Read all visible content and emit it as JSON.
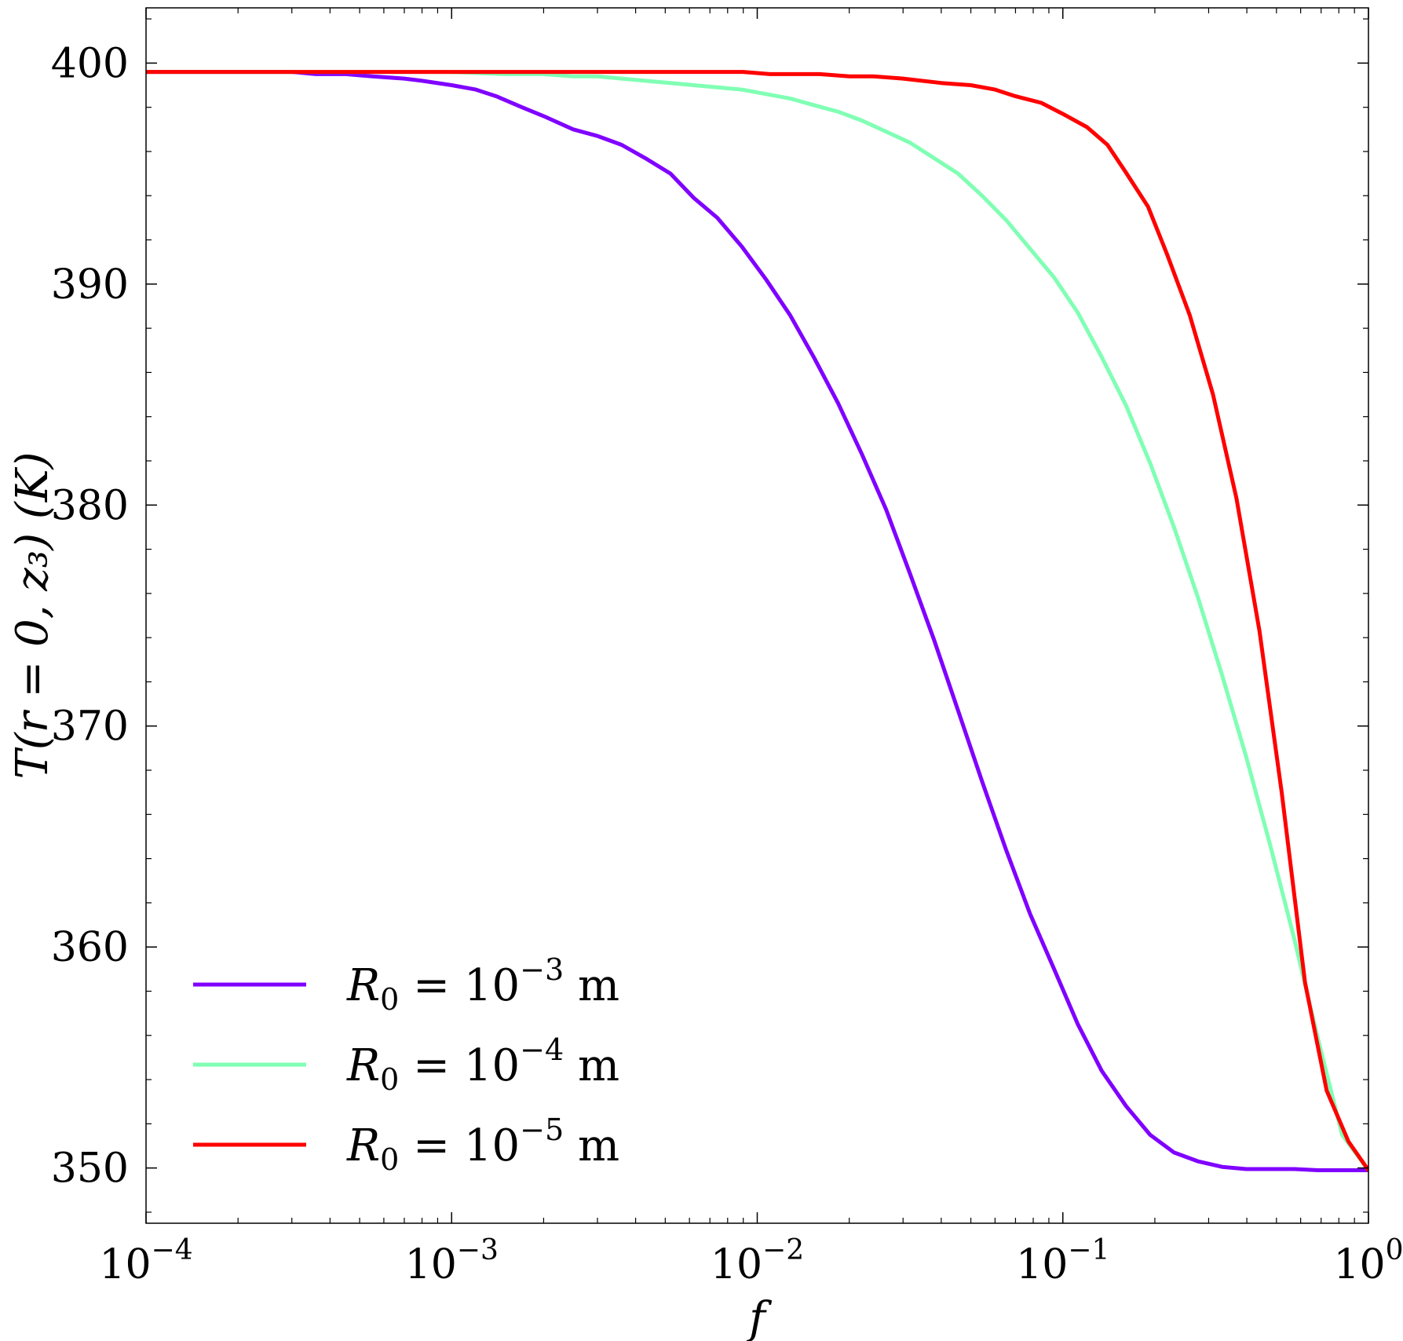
{
  "chart_data": {
    "type": "line",
    "xlabel": "f",
    "ylabel": "T(r = 0, z₃) (K)",
    "xscale": "log",
    "xlim": [
      0.0001,
      1
    ],
    "ylim": [
      347.5,
      402.5
    ],
    "grid": false,
    "legend_position": "lower-left",
    "x_ticks": [
      {
        "value": 0.0001,
        "base": "10",
        "exp": "−4"
      },
      {
        "value": 0.001,
        "base": "10",
        "exp": "−3"
      },
      {
        "value": 0.01,
        "base": "10",
        "exp": "−2"
      },
      {
        "value": 0.1,
        "base": "10",
        "exp": "−1"
      },
      {
        "value": 1,
        "base": "10",
        "exp": "0"
      }
    ],
    "y_ticks": [
      350,
      360,
      370,
      380,
      390,
      400
    ],
    "series": [
      {
        "name": "R₀ = 10⁻³ m",
        "legend": {
          "pre": "R",
          "sub": "0",
          "mid": " = 10",
          "sup": "−3",
          "post": " m"
        },
        "color": "#8000ff",
        "x": [
          0.0001,
          0.0003,
          0.00036,
          0.00045,
          0.00055,
          0.0007,
          0.0008,
          0.001,
          0.0012,
          0.0014,
          0.0017,
          0.002,
          0.0025,
          0.003,
          0.0036,
          0.0043,
          0.0052,
          0.0062,
          0.0074,
          0.0089,
          0.0107,
          0.0128,
          0.0153,
          0.0184,
          0.022,
          0.0264,
          0.0316,
          0.0379,
          0.0454,
          0.0544,
          0.0652,
          0.0781,
          0.0936,
          0.112,
          0.134,
          0.161,
          0.193,
          0.231,
          0.277,
          0.332,
          0.398,
          0.477,
          0.571,
          0.685,
          0.82,
          1.0
        ],
        "y": [
          399.6,
          399.6,
          399.5,
          399.5,
          399.4,
          399.3,
          399.2,
          399.0,
          398.8,
          398.5,
          398.0,
          397.6,
          397.0,
          396.7,
          396.3,
          395.7,
          395.0,
          393.9,
          393.0,
          391.7,
          390.2,
          388.6,
          386.7,
          384.6,
          382.3,
          379.8,
          376.9,
          373.9,
          370.7,
          367.5,
          364.4,
          361.5,
          359.0,
          356.5,
          354.4,
          352.8,
          351.5,
          350.7,
          350.3,
          350.05,
          349.95,
          349.95,
          349.95,
          349.9,
          349.9,
          349.9
        ]
      },
      {
        "name": "R₀ = 10⁻⁴ m",
        "legend": {
          "pre": "R",
          "sub": "0",
          "mid": " = 10",
          "sup": "−4",
          "post": " m"
        },
        "color": "#80ffb4",
        "x": [
          0.0001,
          0.001,
          0.0015,
          0.002,
          0.0025,
          0.003,
          0.0036,
          0.0043,
          0.0052,
          0.0062,
          0.0074,
          0.0089,
          0.0107,
          0.0128,
          0.0153,
          0.0184,
          0.022,
          0.0264,
          0.0316,
          0.0379,
          0.0454,
          0.0544,
          0.0652,
          0.0781,
          0.0936,
          0.112,
          0.134,
          0.161,
          0.193,
          0.231,
          0.277,
          0.332,
          0.398,
          0.477,
          0.571,
          0.685,
          0.82,
          1.0
        ],
        "y": [
          399.6,
          399.6,
          399.5,
          399.5,
          399.4,
          399.4,
          399.3,
          399.2,
          399.1,
          399.0,
          398.9,
          398.8,
          398.6,
          398.4,
          398.1,
          397.8,
          397.4,
          396.9,
          396.4,
          395.7,
          395.0,
          394.0,
          392.9,
          391.6,
          390.3,
          388.7,
          386.7,
          384.5,
          381.9,
          379.0,
          375.8,
          372.3,
          368.6,
          364.6,
          360.4,
          355.8,
          351.5,
          349.9
        ]
      },
      {
        "name": "R₀ = 10⁻⁵ m",
        "legend": {
          "pre": "R",
          "sub": "0",
          "mid": " = 10",
          "sup": "−5",
          "post": " m"
        },
        "color": "#ff0000",
        "x": [
          0.0001,
          0.001,
          0.005,
          0.009,
          0.011,
          0.016,
          0.02,
          0.024,
          0.03,
          0.04,
          0.05,
          0.06,
          0.07,
          0.085,
          0.1,
          0.12,
          0.14,
          0.16,
          0.19,
          0.22,
          0.26,
          0.31,
          0.37,
          0.44,
          0.52,
          0.62,
          0.73,
          0.86,
          1.0
        ],
        "y": [
          399.6,
          399.6,
          399.6,
          399.6,
          399.5,
          399.5,
          399.4,
          399.4,
          399.3,
          399.1,
          399.0,
          398.8,
          398.5,
          398.2,
          397.7,
          397.1,
          396.3,
          395.1,
          393.5,
          391.3,
          388.6,
          385.0,
          380.3,
          374.3,
          367.0,
          358.4,
          353.5,
          351.2,
          349.9
        ]
      }
    ]
  }
}
